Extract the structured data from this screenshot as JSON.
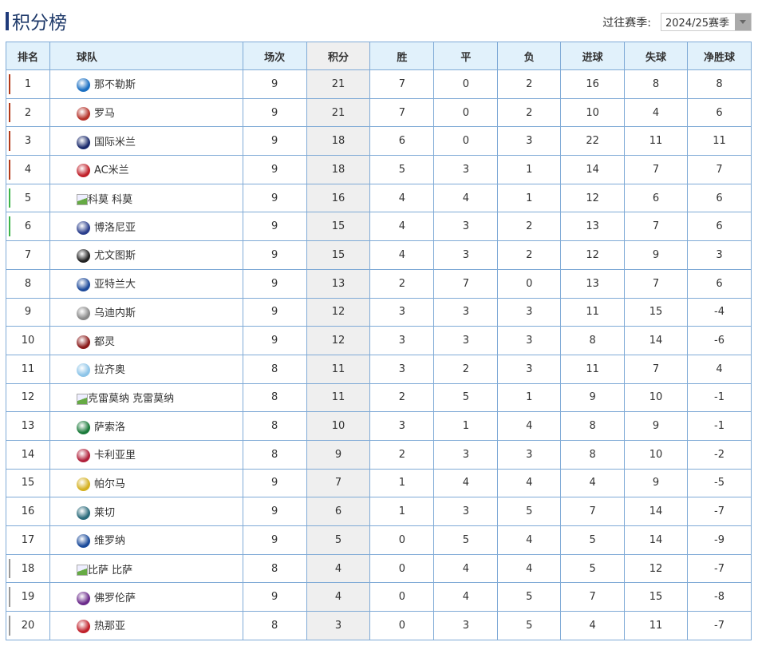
{
  "title": "积分榜",
  "season": {
    "label": "过往赛季:",
    "selected": "2024/25赛季"
  },
  "headers": [
    "排名",
    "球队",
    "场次",
    "积分",
    "胜",
    "平",
    "负",
    "进球",
    "失球",
    "净胜球"
  ],
  "zone_colors": {
    "ucl": "#b33a1a",
    "uel": "#3cb44a",
    "relegation": "#999999"
  },
  "rows": [
    {
      "rank": "1",
      "team": "那不勒斯",
      "logo": "#1b6fc2",
      "zone": "ucl",
      "p": "9",
      "pts": "21",
      "w": "7",
      "d": "0",
      "l": "2",
      "gf": "16",
      "ga": "8",
      "gd": "8"
    },
    {
      "rank": "2",
      "team": "罗马",
      "logo": "#b5322a",
      "zone": "ucl",
      "p": "9",
      "pts": "21",
      "w": "7",
      "d": "0",
      "l": "2",
      "gf": "10",
      "ga": "4",
      "gd": "6"
    },
    {
      "rank": "3",
      "team": "国际米兰",
      "logo": "#1a2a6c",
      "zone": "ucl",
      "p": "9",
      "pts": "18",
      "w": "6",
      "d": "0",
      "l": "3",
      "gf": "22",
      "ga": "11",
      "gd": "11"
    },
    {
      "rank": "4",
      "team": "AC米兰",
      "logo": "#c0202a",
      "zone": "ucl",
      "p": "9",
      "pts": "18",
      "w": "5",
      "d": "3",
      "l": "1",
      "gf": "14",
      "ga": "7",
      "gd": "7"
    },
    {
      "rank": "5",
      "team": "科莫",
      "logo_broken": true,
      "alt": "科莫",
      "zone": "uel",
      "p": "9",
      "pts": "16",
      "w": "4",
      "d": "4",
      "l": "1",
      "gf": "12",
      "ga": "6",
      "gd": "6"
    },
    {
      "rank": "6",
      "team": "博洛尼亚",
      "logo": "#2a3e8c",
      "zone": "uel",
      "p": "9",
      "pts": "15",
      "w": "4",
      "d": "3",
      "l": "2",
      "gf": "13",
      "ga": "7",
      "gd": "6"
    },
    {
      "rank": "7",
      "team": "尤文图斯",
      "logo": "#222222",
      "p": "9",
      "pts": "15",
      "w": "4",
      "d": "3",
      "l": "2",
      "gf": "12",
      "ga": "9",
      "gd": "3"
    },
    {
      "rank": "8",
      "team": "亚特兰大",
      "logo": "#1e4a9a",
      "p": "9",
      "pts": "13",
      "w": "2",
      "d": "7",
      "l": "0",
      "gf": "13",
      "ga": "7",
      "gd": "6"
    },
    {
      "rank": "9",
      "team": "乌迪内斯",
      "logo": "#888888",
      "p": "9",
      "pts": "12",
      "w": "3",
      "d": "3",
      "l": "3",
      "gf": "11",
      "ga": "15",
      "gd": "-4"
    },
    {
      "rank": "10",
      "team": "都灵",
      "logo": "#8a1a1a",
      "p": "9",
      "pts": "12",
      "w": "3",
      "d": "3",
      "l": "3",
      "gf": "8",
      "ga": "14",
      "gd": "-6"
    },
    {
      "rank": "11",
      "team": "拉齐奥",
      "logo": "#8cc4e8",
      "p": "8",
      "pts": "11",
      "w": "3",
      "d": "2",
      "l": "3",
      "gf": "11",
      "ga": "7",
      "gd": "4"
    },
    {
      "rank": "12",
      "team": "克雷莫纳",
      "logo_broken": true,
      "alt": "克雷莫纳",
      "p": "8",
      "pts": "11",
      "w": "2",
      "d": "5",
      "l": "1",
      "gf": "9",
      "ga": "10",
      "gd": "-1"
    },
    {
      "rank": "13",
      "team": "萨索洛",
      "logo": "#1a7a3a",
      "p": "8",
      "pts": "10",
      "w": "3",
      "d": "1",
      "l": "4",
      "gf": "8",
      "ga": "9",
      "gd": "-1"
    },
    {
      "rank": "14",
      "team": "卡利亚里",
      "logo": "#b0203a",
      "p": "8",
      "pts": "9",
      "w": "2",
      "d": "3",
      "l": "3",
      "gf": "8",
      "ga": "10",
      "gd": "-2"
    },
    {
      "rank": "15",
      "team": "帕尔马",
      "logo": "#d4b020",
      "p": "9",
      "pts": "7",
      "w": "1",
      "d": "4",
      "l": "4",
      "gf": "4",
      "ga": "9",
      "gd": "-5"
    },
    {
      "rank": "16",
      "team": "莱切",
      "logo": "#2a6a7a",
      "p": "9",
      "pts": "6",
      "w": "1",
      "d": "3",
      "l": "5",
      "gf": "7",
      "ga": "14",
      "gd": "-7"
    },
    {
      "rank": "17",
      "team": "维罗纳",
      "logo": "#1a4a9a",
      "p": "9",
      "pts": "5",
      "w": "0",
      "d": "5",
      "l": "4",
      "gf": "5",
      "ga": "14",
      "gd": "-9"
    },
    {
      "rank": "18",
      "team": "比萨",
      "logo_broken": true,
      "alt": "比萨",
      "zone": "relegation",
      "p": "8",
      "pts": "4",
      "w": "0",
      "d": "4",
      "l": "4",
      "gf": "5",
      "ga": "12",
      "gd": "-7"
    },
    {
      "rank": "19",
      "team": "佛罗伦萨",
      "logo": "#6a2a8a",
      "zone": "relegation",
      "p": "9",
      "pts": "4",
      "w": "0",
      "d": "4",
      "l": "5",
      "gf": "7",
      "ga": "15",
      "gd": "-8"
    },
    {
      "rank": "20",
      "team": "热那亚",
      "logo": "#c0202a",
      "zone": "relegation",
      "p": "8",
      "pts": "3",
      "w": "0",
      "d": "3",
      "l": "5",
      "gf": "4",
      "ga": "11",
      "gd": "-7"
    }
  ]
}
